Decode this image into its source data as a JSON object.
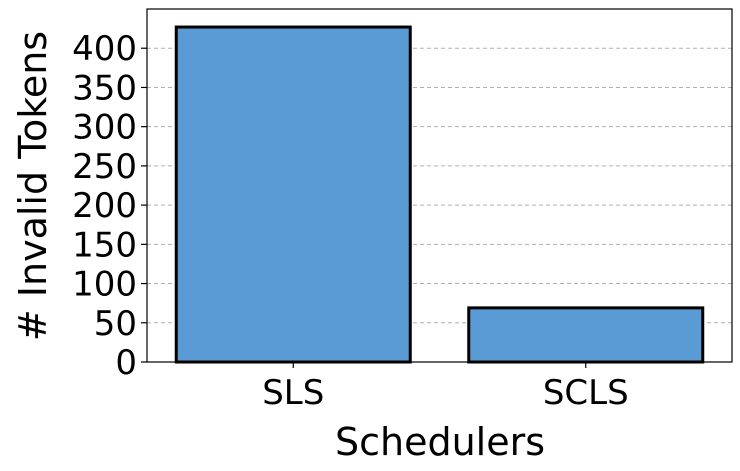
{
  "chart_data": {
    "type": "bar",
    "categories": [
      "SLS",
      "SCLS"
    ],
    "values": [
      427,
      69
    ],
    "xlabel": "Schedulers",
    "ylabel": "# Invalid Tokens",
    "ylim": [
      0,
      450
    ],
    "yticks": [
      0,
      50,
      100,
      150,
      200,
      250,
      300,
      350,
      400
    ],
    "grid": "y-dashed",
    "bar_color": "#5b9bd5",
    "edge_color": "#000000"
  }
}
